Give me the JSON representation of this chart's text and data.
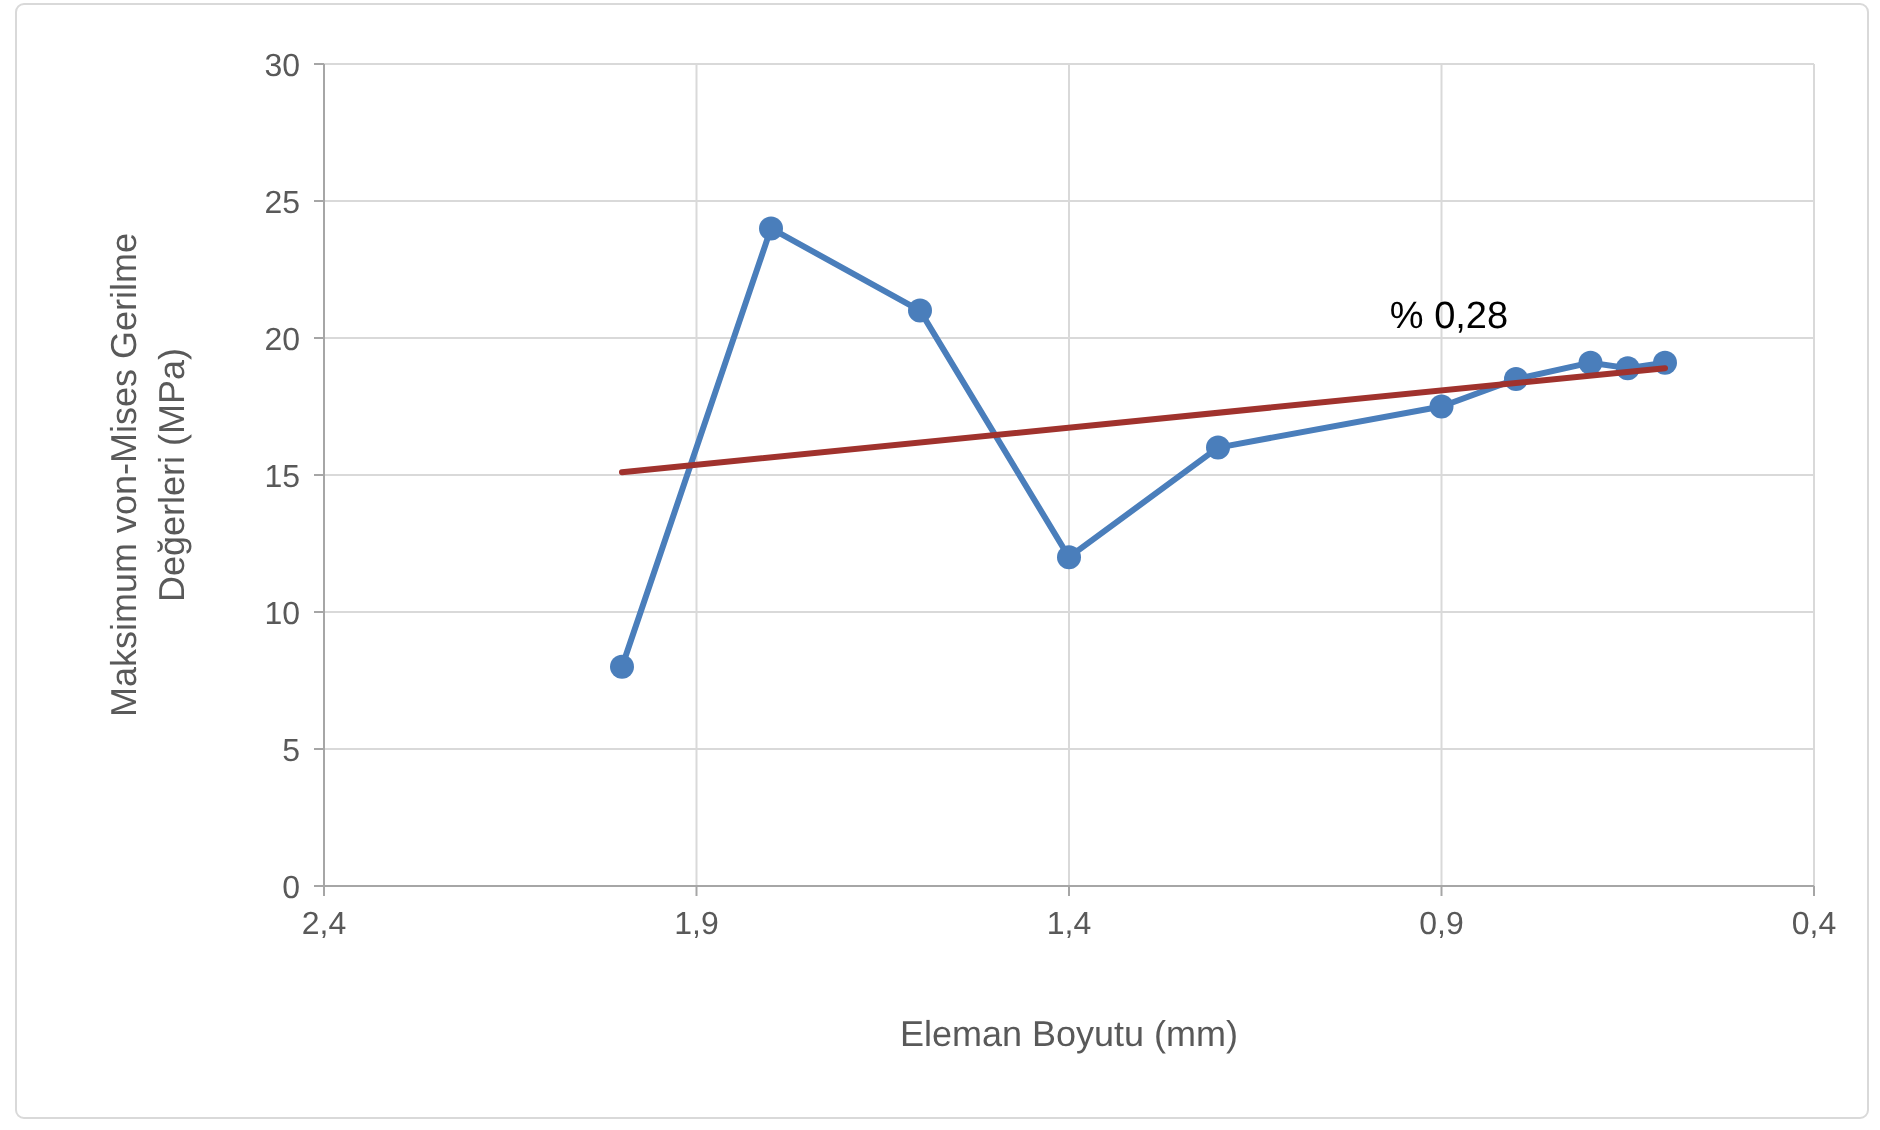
{
  "chart_data": {
    "type": "line",
    "xlabel": "Eleman Boyutu (mm)",
    "ylabel": "Maksimum von-Mises Gerilme Değerleri (MPa)",
    "xlim": [
      2.4,
      0.4
    ],
    "xticks": [
      {
        "value": 2.4,
        "label": "2,4"
      },
      {
        "value": 1.9,
        "label": "1,9"
      },
      {
        "value": 1.4,
        "label": "1,4"
      },
      {
        "value": 0.9,
        "label": "0,9"
      },
      {
        "value": 0.4,
        "label": "0,4"
      }
    ],
    "ylim": [
      0,
      30
    ],
    "yticks": [
      0,
      5,
      10,
      15,
      20,
      25,
      30
    ],
    "grid": true,
    "series": [
      {
        "color": "#4a7ebb",
        "marker": "circle",
        "x": [
          2.0,
          1.8,
          1.6,
          1.4,
          1.2,
          0.9,
          0.8,
          0.7,
          0.65,
          0.6
        ],
        "values": [
          8,
          24,
          21,
          12,
          16,
          17.5,
          18.5,
          19.1,
          18.9,
          19.1
        ]
      },
      {
        "type": "line",
        "color": "#a0322d",
        "marker": "none",
        "x": [
          2.0,
          0.6
        ],
        "values": [
          15.1,
          18.9
        ]
      }
    ],
    "annotations": [
      "% 0,28"
    ]
  }
}
